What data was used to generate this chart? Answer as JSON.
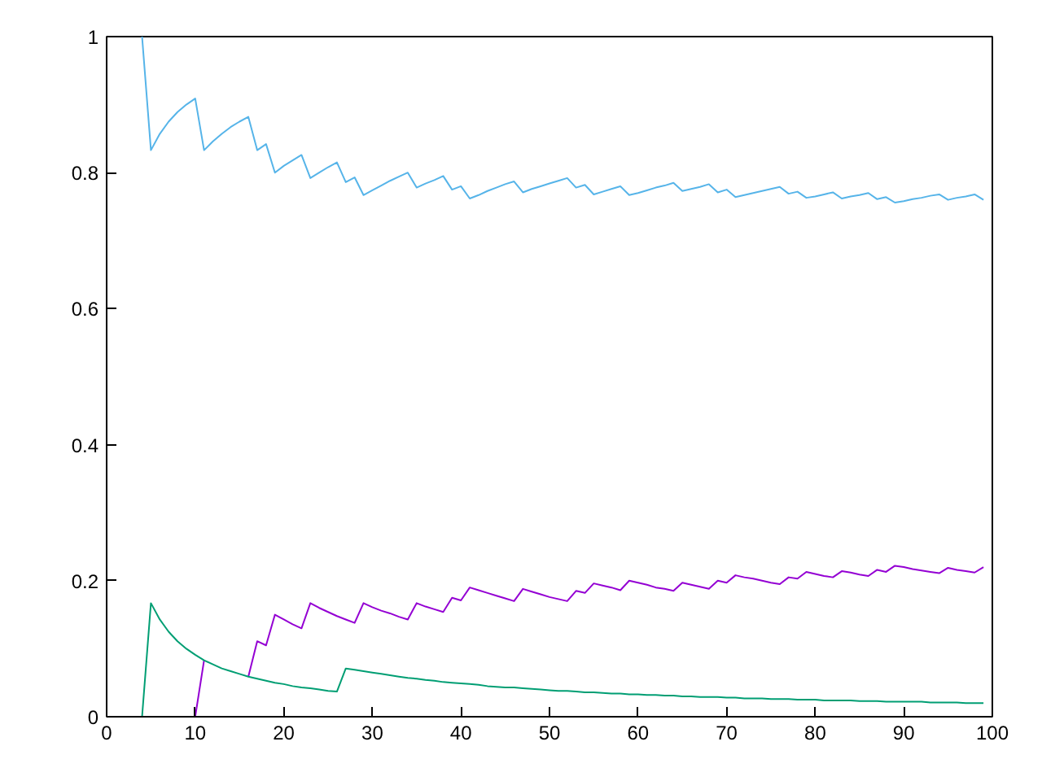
{
  "chart_data": {
    "type": "line",
    "xlim": [
      0,
      100
    ],
    "ylim": [
      0,
      1
    ],
    "xticks": [
      0,
      10,
      20,
      30,
      40,
      50,
      60,
      70,
      80,
      90,
      100
    ],
    "yticks": [
      0,
      {
        "value": 0.2,
        "label": "0.2"
      },
      {
        "value": 0.4,
        "label": "0.4"
      },
      {
        "value": 0.6,
        "label": "0.6"
      },
      {
        "value": 0.8,
        "label": "0.8"
      },
      1
    ],
    "line_style": "solid",
    "series": [
      {
        "color": "#9400d3",
        "x": [
          10,
          11,
          12,
          13,
          14,
          15,
          16,
          17,
          18,
          19,
          20,
          21,
          22,
          23,
          24,
          25,
          26,
          27,
          28,
          29,
          30,
          31,
          32,
          33,
          34,
          35,
          36,
          37,
          38,
          39,
          40,
          41,
          42,
          43,
          44,
          45,
          46,
          47,
          48,
          49,
          50,
          51,
          52,
          53,
          54,
          55,
          56,
          57,
          58,
          59,
          60,
          61,
          62,
          63,
          64,
          65,
          66,
          67,
          68,
          69,
          70,
          71,
          72,
          73,
          74,
          75,
          76,
          77,
          78,
          79,
          80,
          81,
          82,
          83,
          84,
          85,
          86,
          87,
          88,
          89,
          90,
          91,
          92,
          93,
          94,
          95,
          96,
          97,
          98,
          99
        ],
        "values": [
          0,
          0.083,
          null,
          null,
          null,
          null,
          0.059,
          0.111,
          0.105,
          0.15,
          0.143,
          0.136,
          0.13,
          0.167,
          0.16,
          0.154,
          0.148,
          0.143,
          0.138,
          0.167,
          0.161,
          0.156,
          0.152,
          0.147,
          0.143,
          0.167,
          0.162,
          0.158,
          0.154,
          0.175,
          0.171,
          0.19,
          0.186,
          0.182,
          0.178,
          0.174,
          0.17,
          0.188,
          0.184,
          0.18,
          0.176,
          0.173,
          0.17,
          0.185,
          0.182,
          0.196,
          0.193,
          0.19,
          0.186,
          0.2,
          0.197,
          0.194,
          0.19,
          0.188,
          0.185,
          0.197,
          0.194,
          0.191,
          0.188,
          0.2,
          0.197,
          0.208,
          0.205,
          0.203,
          0.2,
          0.197,
          0.195,
          0.205,
          0.203,
          0.213,
          0.21,
          0.207,
          0.205,
          0.214,
          0.212,
          0.209,
          0.207,
          0.216,
          0.213,
          0.222,
          0.22,
          0.217,
          0.215,
          0.213,
          0.211,
          0.219,
          0.216,
          0.214,
          0.212,
          0.22
        ]
      },
      {
        "color": "#009e73",
        "x": [
          4,
          5,
          6,
          7,
          8,
          9,
          10,
          11,
          12,
          13,
          14,
          15,
          16,
          17,
          18,
          19,
          20,
          21,
          22,
          23,
          24,
          25,
          26,
          27,
          28,
          29,
          30,
          31,
          32,
          33,
          34,
          35,
          36,
          37,
          38,
          39,
          40,
          41,
          42,
          43,
          44,
          45,
          46,
          47,
          48,
          49,
          50,
          51,
          52,
          53,
          54,
          55,
          56,
          57,
          58,
          59,
          60,
          61,
          62,
          63,
          64,
          65,
          66,
          67,
          68,
          69,
          70,
          71,
          72,
          73,
          74,
          75,
          76,
          77,
          78,
          79,
          80,
          81,
          82,
          83,
          84,
          85,
          86,
          87,
          88,
          89,
          90,
          91,
          92,
          93,
          94,
          95,
          96,
          97,
          98,
          99
        ],
        "values": [
          0,
          0.167,
          0.143,
          0.125,
          0.111,
          0.1,
          0.091,
          0.083,
          0.077,
          0.071,
          0.067,
          0.063,
          0.059,
          0.056,
          0.053,
          0.05,
          0.048,
          0.045,
          0.043,
          0.042,
          0.04,
          0.038,
          0.037,
          0.071,
          0.069,
          0.067,
          0.065,
          0.063,
          0.061,
          0.059,
          0.057,
          0.056,
          0.054,
          0.053,
          0.051,
          0.05,
          0.049,
          0.048,
          0.047,
          0.045,
          0.044,
          0.043,
          0.043,
          0.042,
          0.041,
          0.04,
          0.039,
          0.038,
          0.038,
          0.037,
          0.036,
          0.036,
          0.035,
          0.034,
          0.034,
          0.033,
          0.033,
          0.032,
          0.032,
          0.031,
          0.031,
          0.03,
          0.03,
          0.029,
          0.029,
          0.029,
          0.028,
          0.028,
          0.027,
          0.027,
          0.027,
          0.026,
          0.026,
          0.026,
          0.025,
          0.025,
          0.025,
          0.024,
          0.024,
          0.024,
          0.024,
          0.023,
          0.023,
          0.023,
          0.022,
          0.022,
          0.022,
          0.022,
          0.022,
          0.021,
          0.021,
          0.021,
          0.021,
          0.02,
          0.02,
          0.02
        ]
      },
      {
        "color": "#56b4e9",
        "x": [
          4,
          5,
          6,
          7,
          8,
          9,
          10,
          11,
          12,
          13,
          14,
          15,
          16,
          17,
          18,
          19,
          20,
          21,
          22,
          23,
          24,
          25,
          26,
          27,
          28,
          29,
          30,
          31,
          32,
          33,
          34,
          35,
          36,
          37,
          38,
          39,
          40,
          41,
          42,
          43,
          44,
          45,
          46,
          47,
          48,
          49,
          50,
          51,
          52,
          53,
          54,
          55,
          56,
          57,
          58,
          59,
          60,
          61,
          62,
          63,
          64,
          65,
          66,
          67,
          68,
          69,
          70,
          71,
          72,
          73,
          74,
          75,
          76,
          77,
          78,
          79,
          80,
          81,
          82,
          83,
          84,
          85,
          86,
          87,
          88,
          89,
          90,
          91,
          92,
          93,
          94,
          95,
          96,
          97,
          98,
          99
        ],
        "values": [
          1,
          0.833,
          0.857,
          0.875,
          0.889,
          0.9,
          0.909,
          0.833,
          0.846,
          0.857,
          0.867,
          0.875,
          0.882,
          0.833,
          0.842,
          0.8,
          0.81,
          0.818,
          0.826,
          0.792,
          0.8,
          0.808,
          0.815,
          0.786,
          0.793,
          0.767,
          0.774,
          0.781,
          0.788,
          0.794,
          0.8,
          0.778,
          0.784,
          0.789,
          0.795,
          0.775,
          0.78,
          0.762,
          0.767,
          0.773,
          0.778,
          0.783,
          0.787,
          0.771,
          0.776,
          0.78,
          0.784,
          0.788,
          0.792,
          0.778,
          0.782,
          0.768,
          0.772,
          0.776,
          0.78,
          0.767,
          0.77,
          0.774,
          0.778,
          0.781,
          0.785,
          0.773,
          0.776,
          0.779,
          0.783,
          0.771,
          0.775,
          0.764,
          0.767,
          0.77,
          0.773,
          0.776,
          0.779,
          0.769,
          0.772,
          0.763,
          0.765,
          0.768,
          0.771,
          0.762,
          0.765,
          0.767,
          0.77,
          0.761,
          0.764,
          0.756,
          0.758,
          0.761,
          0.763,
          0.766,
          0.768,
          0.76,
          0.763,
          0.765,
          0.768,
          0.76
        ]
      }
    ]
  }
}
